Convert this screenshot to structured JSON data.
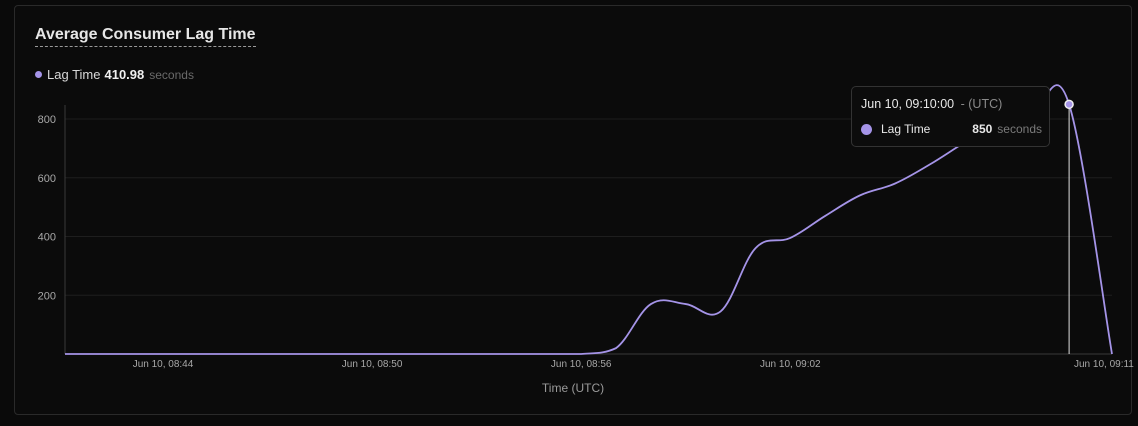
{
  "panel": {
    "title": "Average Consumer Lag Time",
    "legend": {
      "series_name": "Lag Time",
      "value": "410.98",
      "unit": "seconds"
    }
  },
  "tooltip": {
    "time": "Jun 10, 09:10:00",
    "tz": "- (UTC)",
    "series_name": "Lag Time",
    "value": "850",
    "unit": "seconds"
  },
  "colors": {
    "series": "#a594e8",
    "grid": "#1e1e1e",
    "axis": "#3a3a3a",
    "tick_text": "#a8a8a8"
  },
  "chart_data": {
    "type": "line",
    "title": "Average Consumer Lag Time",
    "xlabel": "Time (UTC)",
    "ylabel": "",
    "ylim": [
      0,
      850
    ],
    "y_ticks": [
      200,
      400,
      600,
      800
    ],
    "x_ticks": [
      "Jun 10, 08:44",
      "Jun 10, 08:50",
      "Jun 10, 08:56",
      "Jun 10, 09:02",
      "Jun 10, 09:11"
    ],
    "grid": true,
    "series": [
      {
        "name": "Lag Time",
        "x": [
          "08:41",
          "08:54",
          "08:55",
          "08:56",
          "08:57",
          "08:58",
          "08:59",
          "09:00",
          "09:01",
          "09:02",
          "09:03",
          "09:04",
          "09:05",
          "09:06",
          "09:07",
          "09:08",
          "09:09",
          "09:10",
          "09:11"
        ],
        "values": [
          0,
          0,
          0,
          0,
          20,
          170,
          170,
          145,
          360,
          395,
          470,
          540,
          580,
          645,
          720,
          790,
          835,
          850,
          0
        ]
      }
    ],
    "highlight": {
      "x": "09:10",
      "value": 850
    }
  }
}
